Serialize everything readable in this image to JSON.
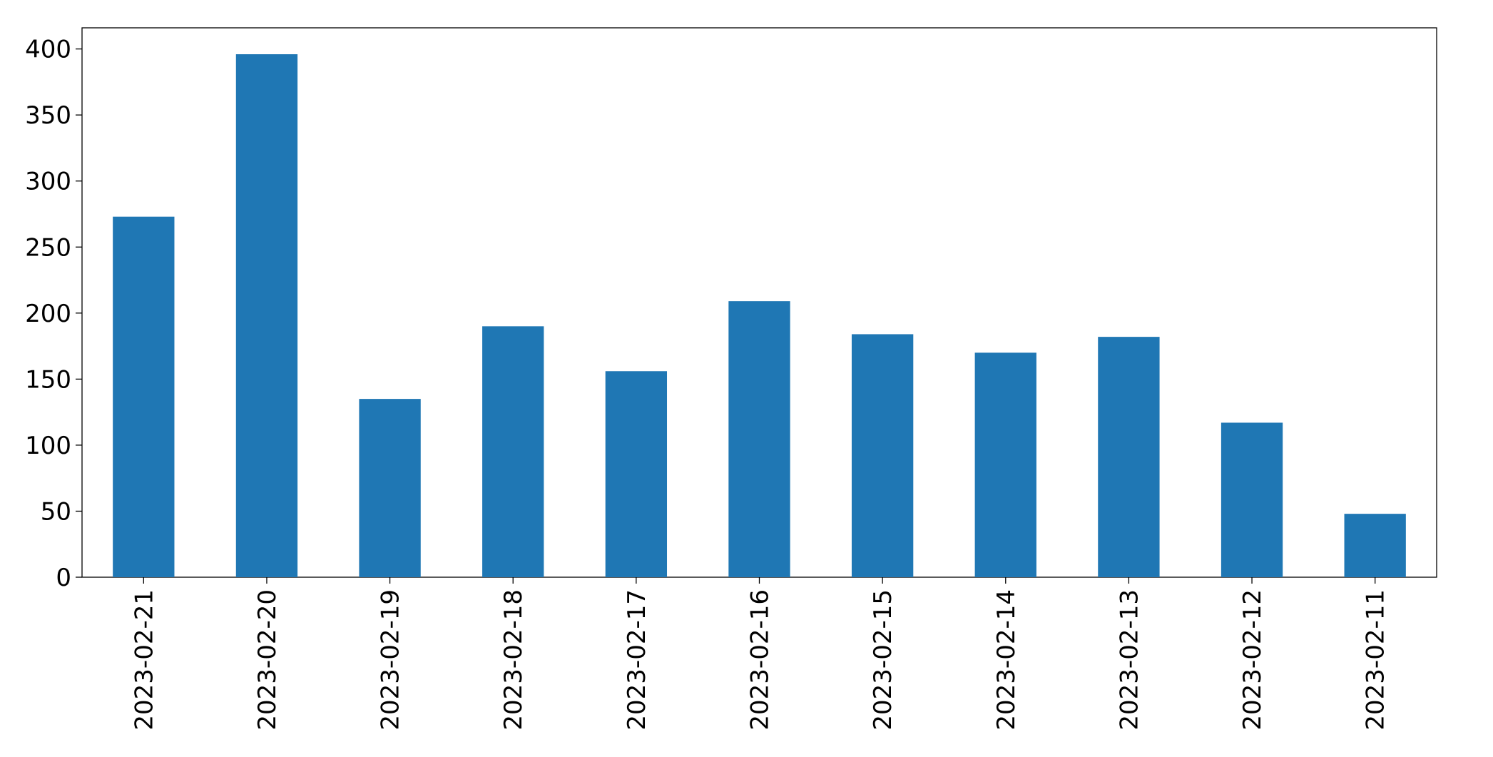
{
  "chart_data": {
    "type": "bar",
    "categories": [
      "2023-02-21",
      "2023-02-20",
      "2023-02-19",
      "2023-02-18",
      "2023-02-17",
      "2023-02-16",
      "2023-02-15",
      "2023-02-14",
      "2023-02-13",
      "2023-02-12",
      "2023-02-11"
    ],
    "values": [
      273,
      396,
      135,
      190,
      156,
      209,
      184,
      170,
      182,
      117,
      48
    ],
    "color": "#1f77b4",
    "ylim": [
      0,
      416
    ],
    "yticks": [
      0,
      50,
      100,
      150,
      200,
      250,
      300,
      350,
      400
    ],
    "grid": false
  }
}
